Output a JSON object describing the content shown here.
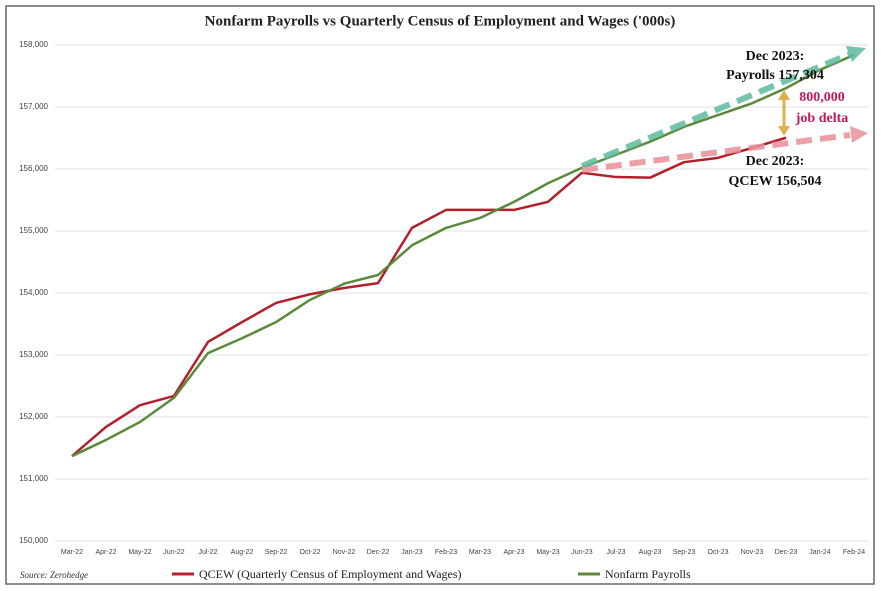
{
  "chart_data": {
    "type": "line",
    "title": "Nonfarm Payrolls vs Quarterly Census of Employment and Wages ('000s)",
    "categories": [
      "Mar-22",
      "Apr-22",
      "May-22",
      "Jun-22",
      "Jul-22",
      "Aug-22",
      "Sep-22",
      "Oct-22",
      "Nov-22",
      "Dec-22",
      "Jan-23",
      "Feb-23",
      "Mar-23",
      "Apr-23",
      "May-23",
      "Jun-23",
      "Jul-23",
      "Aug-23",
      "Sep-23",
      "Oct-23",
      "Nov-23",
      "Dec-23",
      "Jan-24",
      "Feb-24"
    ],
    "series": [
      {
        "name": "QCEW (Quarterly Census of Employment and Wages)",
        "color": "#b3202c",
        "values": [
          151370,
          151840,
          152190,
          152340,
          153210,
          153530,
          153840,
          153980,
          154080,
          154160,
          155050,
          155340,
          155340,
          155340,
          155470,
          155940,
          155870,
          155860,
          156110,
          156180,
          156340,
          156504,
          null,
          null
        ]
      },
      {
        "name": "Nonfarm Payrolls",
        "color": "#5b8a3c",
        "values": [
          151370,
          151630,
          151920,
          152310,
          153030,
          153270,
          153530,
          153890,
          154150,
          154290,
          154770,
          155050,
          155210,
          155470,
          155770,
          156020,
          156230,
          156440,
          156680,
          156870,
          157060,
          157304,
          157600,
          157840
        ]
      }
    ],
    "ylim": [
      150000,
      158000
    ],
    "yticks": [
      {
        "value": 150000,
        "label": "150,000"
      },
      {
        "value": 151000,
        "label": "151,000"
      },
      {
        "value": 152000,
        "label": "152,000"
      },
      {
        "value": 153000,
        "label": "153,000"
      },
      {
        "value": 154000,
        "label": "154,000"
      },
      {
        "value": 155000,
        "label": "155,000"
      },
      {
        "value": 156000,
        "label": "156,000"
      },
      {
        "value": 157000,
        "label": "157,000"
      },
      {
        "value": 158000,
        "label": "158,000"
      }
    ],
    "grid": true,
    "annotations": [
      "Dec 2023:",
      "Payrolls 157,304",
      "800,000",
      "job delta",
      "Dec 2023:",
      "QCEW 156,504"
    ],
    "source": "Source: Zerohedge"
  }
}
